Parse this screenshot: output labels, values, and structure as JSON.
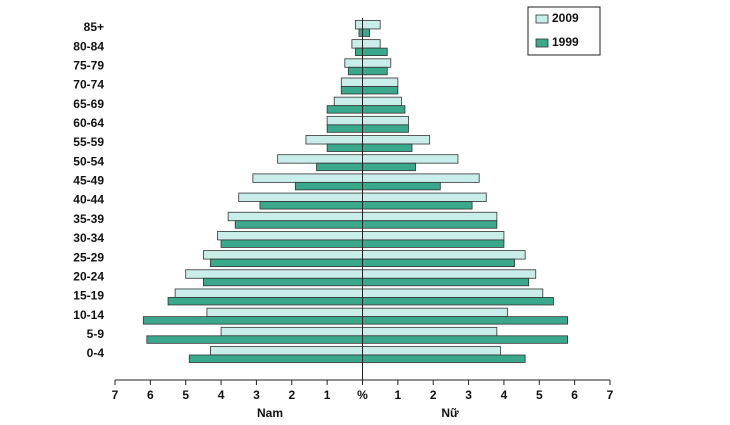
{
  "chart_data": {
    "type": "pyramid",
    "categories": [
      "0-4",
      "5-9",
      "10-14",
      "15-19",
      "20-24",
      "25-29",
      "30-34",
      "35-39",
      "40-44",
      "45-49",
      "50-54",
      "55-59",
      "60-64",
      "65-69",
      "70-74",
      "75-79",
      "80-84",
      "85+"
    ],
    "series": [
      {
        "name": "2009",
        "color": "#c9ede8",
        "male": [
          4.3,
          4.0,
          4.4,
          5.3,
          5.0,
          4.5,
          4.1,
          3.8,
          3.5,
          3.1,
          2.4,
          1.6,
          1.0,
          0.8,
          0.6,
          0.5,
          0.3,
          0.2
        ],
        "female": [
          3.9,
          3.8,
          4.1,
          5.1,
          4.9,
          4.6,
          4.0,
          3.8,
          3.5,
          3.3,
          2.7,
          1.9,
          1.3,
          1.1,
          1.0,
          0.8,
          0.5,
          0.5
        ]
      },
      {
        "name": "1999",
        "color": "#3aa88a",
        "male": [
          4.9,
          6.1,
          6.2,
          5.5,
          4.5,
          4.3,
          4.0,
          3.6,
          2.9,
          1.9,
          1.3,
          1.0,
          1.0,
          1.0,
          0.6,
          0.4,
          0.2,
          0.1
        ],
        "female": [
          4.6,
          5.8,
          5.8,
          5.4,
          4.7,
          4.3,
          4.0,
          3.8,
          3.1,
          2.2,
          1.5,
          1.4,
          1.3,
          1.2,
          1.0,
          0.7,
          0.7,
          0.2
        ]
      }
    ],
    "xlabel_left": "Nam",
    "xlabel_right": "Nữ",
    "xlim": [
      -7,
      7
    ],
    "xticks": [
      {
        "value": -7,
        "label": "7"
      },
      {
        "value": -6,
        "label": "6"
      },
      {
        "value": -5,
        "label": "5"
      },
      {
        "value": -4,
        "label": "4"
      },
      {
        "value": -3,
        "label": "3"
      },
      {
        "value": -2,
        "label": "2"
      },
      {
        "value": -1,
        "label": "1"
      },
      {
        "value": 0,
        "label": "%"
      },
      1,
      2,
      3,
      4,
      5,
      6,
      7
    ],
    "legend": "top-right"
  }
}
